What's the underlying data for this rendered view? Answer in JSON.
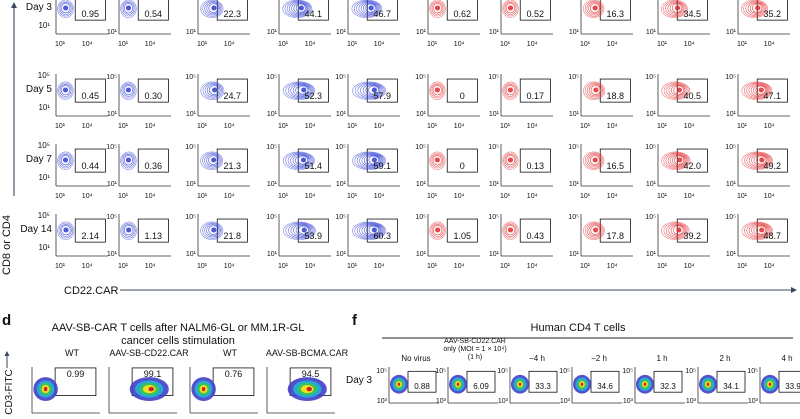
{
  "colors": {
    "blue": "#2b3bd1",
    "red": "#e0282c",
    "axis": "#333333",
    "arrow": "#3b4a5c",
    "heat_low": "#3f3fc9",
    "heat_mid": "#f1df22",
    "heat_high": "#d42020"
  },
  "top_panel": {
    "y_axis_label": "CD8 or CD4",
    "x_axis_label": "CD22.CAR",
    "tick_high": "10⁴",
    "tick_low": "10¹",
    "tick_y_high": "10⁵",
    "tick_y_low": "10¹",
    "rows": [
      {
        "day": "Day 3",
        "blue": [
          "0.95",
          "0.54",
          "22.3",
          "44.1",
          "46.7"
        ],
        "red": [
          "0.62",
          "0.52",
          "16.3",
          "34.5",
          "35.2"
        ]
      },
      {
        "day": "Day 5",
        "blue": [
          "0.45",
          "0.30",
          "24.7",
          "52.3",
          "57.9"
        ],
        "red": [
          "0",
          "0.17",
          "18.8",
          "40.5",
          "47.1"
        ]
      },
      {
        "day": "Day 7",
        "blue": [
          "0.44",
          "0.36",
          "21.3",
          "51.4",
          "59.1"
        ],
        "red": [
          "0",
          "0.13",
          "16.5",
          "42.0",
          "49.2"
        ]
      },
      {
        "day": "Day 14",
        "blue": [
          "2.14",
          "1.13",
          "21.8",
          "53.9",
          "60.3"
        ],
        "red": [
          "1.05",
          "0.43",
          "17.8",
          "39.2",
          "48.7"
        ]
      }
    ]
  },
  "panel_d": {
    "letter": "d",
    "title_line1": "AAV-SB-CAR T cells after NALM6-GL or MM.1R-GL",
    "title_line2": "cancer cells stimulation",
    "y_axis_label": "CD3-FITC",
    "plots": [
      {
        "label": "WT",
        "value": "0.99"
      },
      {
        "label": "AAV-SB-CD22.CAR",
        "value": "99.1"
      },
      {
        "label": "WT",
        "value": "0.76"
      },
      {
        "label": "AAV-SB-BCMA.CAR",
        "value": "94.5"
      }
    ]
  },
  "panel_f": {
    "letter": "f",
    "title": "Human CD4 T cells",
    "row_label": "Day 3",
    "tick_y_high": "10⁵",
    "tick_y_low": "10³",
    "plots": [
      {
        "label_line1": "No virus",
        "label_line2": "",
        "label_line3": "",
        "value": "0.88"
      },
      {
        "label_line1": "AAV-SB-CD22.CAR",
        "label_line2": "only (MOI = 1 × 10⁴)",
        "label_line3": "(1 h)",
        "value": "6.09"
      },
      {
        "label_line1": "−4 h",
        "label_line2": "",
        "label_line3": "",
        "value": "33.3"
      },
      {
        "label_line1": "−2 h",
        "label_line2": "",
        "label_line3": "",
        "value": "34.6"
      },
      {
        "label_line1": "1 h",
        "label_line2": "",
        "label_line3": "",
        "value": "32.3"
      },
      {
        "label_line1": "2 h",
        "label_line2": "",
        "label_line3": "",
        "value": "34.1"
      },
      {
        "label_line1": "4 h",
        "label_line2": "",
        "label_line3": "",
        "value": "33.9"
      }
    ]
  }
}
